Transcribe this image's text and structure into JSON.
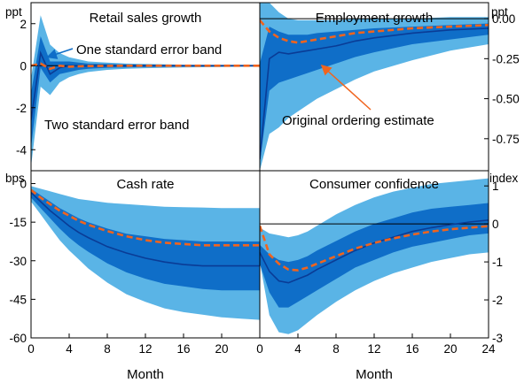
{
  "colors": {
    "two_se_band": "#5ab4e6",
    "one_se_band": "#0f6ec8",
    "median": "#0a3c96",
    "original_ordering": "#f0641e",
    "zero_line": "#000000"
  },
  "chart_data": [
    {
      "type": "area",
      "id": "retail",
      "title": "Retail sales growth",
      "unit": "ppt",
      "axis_side": "left",
      "ylim": [
        -5,
        3
      ],
      "yticks": [
        2,
        0,
        -2,
        -4
      ],
      "ytick_labels": [
        "2",
        "0",
        "-2",
        "-4"
      ],
      "xlim": [
        0,
        24
      ],
      "xticks": [
        0,
        4,
        8,
        12,
        16,
        20
      ],
      "xtick_labels": [
        "0",
        "4",
        "8",
        "12",
        "16",
        "20"
      ],
      "xlabel": "Month",
      "zero_line": 0,
      "x": [
        0,
        1,
        2,
        3,
        4,
        5,
        6,
        8,
        10,
        12,
        16,
        20,
        24
      ],
      "two_se_upper": [
        -0.6,
        2.4,
        1.0,
        0.6,
        0.4,
        0.3,
        0.2,
        0.15,
        0.1,
        0.08,
        0.05,
        0.04,
        0.04
      ],
      "two_se_lower": [
        -4.8,
        -1.0,
        -1.4,
        -0.8,
        -0.55,
        -0.4,
        -0.3,
        -0.2,
        -0.15,
        -0.12,
        -0.08,
        -0.06,
        -0.05
      ],
      "one_se_upper": [
        -1.3,
        1.4,
        0.2,
        0.2,
        0.2,
        0.15,
        0.1,
        0.08,
        0.06,
        0.05,
        0.03,
        0.02,
        0.02
      ],
      "one_se_lower": [
        -3.9,
        -0.1,
        -0.8,
        -0.4,
        -0.3,
        -0.2,
        -0.15,
        -0.1,
        -0.08,
        -0.06,
        -0.04,
        -0.03,
        -0.03
      ],
      "median": [
        -2.6,
        0.6,
        -0.4,
        -0.1,
        0.0,
        -0.02,
        -0.02,
        -0.01,
        -0.01,
        -0.01,
        0.0,
        0.0,
        0.0
      ],
      "original_ordering": [
        0.0,
        0.1,
        -0.15,
        0.0,
        -0.05,
        -0.03,
        -0.02,
        -0.01,
        0.0,
        0.0,
        0.0,
        0.0,
        0.0
      ],
      "annotations": [
        {
          "text": "One standard error band",
          "color": "one_se_band"
        },
        {
          "text": "Two standard error band",
          "color": "two_se_band"
        }
      ]
    },
    {
      "type": "area",
      "id": "employment",
      "title": "Employment growth",
      "unit": "ppt",
      "axis_side": "right",
      "ylim": [
        -0.95,
        0.1
      ],
      "yticks": [
        0.0,
        -0.25,
        -0.5,
        -0.75
      ],
      "ytick_labels": [
        "0.00",
        "-0.25",
        "-0.50",
        "-0.75"
      ],
      "xlim": [
        0,
        24
      ],
      "xticks": [
        0,
        4,
        8,
        12,
        16,
        20,
        24
      ],
      "xtick_labels": [
        "0",
        "4",
        "8",
        "12",
        "16",
        "20",
        "24"
      ],
      "xlabel": "Month",
      "zero_line": 0,
      "x": [
        0,
        1,
        2,
        3,
        4,
        5,
        6,
        8,
        10,
        12,
        16,
        20,
        24
      ],
      "two_se_upper": [
        0.2,
        0.1,
        0.04,
        0.0,
        -0.01,
        -0.01,
        -0.01,
        -0.01,
        0.0,
        0.0,
        0.0,
        0.01,
        0.01
      ],
      "two_se_lower": [
        -0.95,
        -0.72,
        -0.68,
        -0.62,
        -0.58,
        -0.54,
        -0.5,
        -0.44,
        -0.38,
        -0.33,
        -0.26,
        -0.2,
        -0.16
      ],
      "one_se_upper": [
        -0.28,
        -0.05,
        -0.08,
        -0.1,
        -0.1,
        -0.1,
        -0.09,
        -0.08,
        -0.07,
        -0.06,
        -0.05,
        -0.04,
        -0.03
      ],
      "one_se_lower": [
        -0.9,
        -0.45,
        -0.4,
        -0.38,
        -0.36,
        -0.34,
        -0.32,
        -0.28,
        -0.24,
        -0.21,
        -0.16,
        -0.13,
        -0.1
      ],
      "median": [
        -0.88,
        -0.25,
        -0.21,
        -0.22,
        -0.21,
        -0.2,
        -0.19,
        -0.17,
        -0.14,
        -0.12,
        -0.09,
        -0.07,
        -0.06
      ],
      "original_ordering": [
        -0.01,
        -0.08,
        -0.12,
        -0.14,
        -0.15,
        -0.14,
        -0.13,
        -0.11,
        -0.09,
        -0.08,
        -0.06,
        -0.05,
        -0.04
      ],
      "annotations": [
        {
          "text": "Original ordering estimate",
          "color": "original_ordering"
        }
      ]
    },
    {
      "type": "area",
      "id": "cash",
      "title": "Cash rate",
      "unit": "bps",
      "axis_side": "left",
      "ylim": [
        -60,
        5
      ],
      "yticks": [
        0,
        -15,
        -30,
        -45,
        -60
      ],
      "ytick_labels": [
        "0",
        "-15",
        "-30",
        "-45",
        "-60"
      ],
      "xlim": [
        0,
        24
      ],
      "xticks": [
        0,
        4,
        8,
        12,
        16,
        20
      ],
      "xtick_labels": [
        "0",
        "4",
        "8",
        "12",
        "16",
        "20"
      ],
      "xlabel": "Month",
      "zero_line": null,
      "x": [
        0,
        1,
        2,
        3,
        4,
        5,
        6,
        8,
        10,
        12,
        14,
        16,
        18,
        20,
        22,
        24
      ],
      "two_se_upper": [
        -1,
        -2,
        -3,
        -4,
        -5,
        -6,
        -6.5,
        -7.5,
        -8,
        -8.5,
        -9,
        -9.2,
        -9.3,
        -9.5,
        -9.5,
        -9.5
      ],
      "two_se_lower": [
        -7,
        -12,
        -17,
        -22,
        -26,
        -29.5,
        -33,
        -38.5,
        -43,
        -46,
        -48.5,
        -50,
        -51,
        -52,
        -52.5,
        -53
      ],
      "one_se_upper": [
        -2,
        -4.5,
        -7,
        -9.5,
        -11.5,
        -13.5,
        -15,
        -17.5,
        -19.5,
        -20.5,
        -21.5,
        -22,
        -22.5,
        -22.5,
        -22.5,
        -22.5
      ],
      "one_se_lower": [
        -5.5,
        -9.5,
        -13.5,
        -17.5,
        -21,
        -24,
        -26.5,
        -31,
        -34.5,
        -37,
        -39,
        -40,
        -41,
        -41.5,
        -41.5,
        -41.5
      ],
      "median": [
        -3.5,
        -7,
        -10.5,
        -13.5,
        -16.5,
        -19,
        -21,
        -24.5,
        -27,
        -29,
        -30.5,
        -31.5,
        -32,
        -32,
        -32,
        -32
      ],
      "original_ordering": [
        -2.5,
        -5.5,
        -8,
        -10.5,
        -12.5,
        -14.5,
        -16,
        -18.5,
        -20.5,
        -22,
        -23,
        -23.5,
        -24,
        -24,
        -24,
        -24
      ],
      "annotations": []
    },
    {
      "type": "area",
      "id": "confidence",
      "title": "Consumer confidence",
      "unit": "index",
      "axis_side": "right",
      "ylim": [
        -3,
        1.4
      ],
      "yticks": [
        1,
        0,
        -1,
        -2,
        -3
      ],
      "ytick_labels": [
        "1",
        "0",
        "-1",
        "-2",
        "-3"
      ],
      "xlim": [
        0,
        24
      ],
      "xticks": [
        0,
        4,
        8,
        12,
        16,
        20,
        24
      ],
      "xtick_labels": [
        "0",
        "4",
        "8",
        "12",
        "16",
        "20",
        "24"
      ],
      "xlabel": "Month",
      "zero_line": 0,
      "x": [
        0,
        1,
        2,
        3,
        4,
        5,
        6,
        8,
        10,
        12,
        14,
        16,
        18,
        20,
        22,
        24
      ],
      "two_se_upper": [
        -0.1,
        -0.25,
        -0.3,
        -0.35,
        -0.3,
        -0.2,
        -0.05,
        0.25,
        0.5,
        0.7,
        0.85,
        0.95,
        1.05,
        1.1,
        1.15,
        1.2
      ],
      "two_se_lower": [
        -1.0,
        -2.4,
        -2.85,
        -2.9,
        -2.8,
        -2.6,
        -2.4,
        -2.05,
        -1.75,
        -1.5,
        -1.3,
        -1.15,
        -1.0,
        -0.9,
        -0.8,
        -0.75
      ],
      "one_se_upper": [
        -0.55,
        -0.8,
        -0.95,
        -1.0,
        -0.95,
        -0.85,
        -0.7,
        -0.45,
        -0.2,
        0.0,
        0.15,
        0.3,
        0.4,
        0.45,
        0.5,
        0.55
      ],
      "one_se_lower": [
        -1.05,
        -1.8,
        -2.2,
        -2.2,
        -2.05,
        -1.9,
        -1.75,
        -1.45,
        -1.15,
        -0.95,
        -0.75,
        -0.6,
        -0.5,
        -0.4,
        -0.3,
        -0.25
      ],
      "median": [
        -0.75,
        -1.25,
        -1.5,
        -1.55,
        -1.45,
        -1.35,
        -1.2,
        -0.95,
        -0.7,
        -0.5,
        -0.35,
        -0.2,
        -0.1,
        -0.02,
        0.05,
        0.1
      ],
      "original_ordering": [
        -0.05,
        -0.8,
        -1.05,
        -1.2,
        -1.22,
        -1.15,
        -1.05,
        -0.85,
        -0.65,
        -0.5,
        -0.38,
        -0.28,
        -0.2,
        -0.14,
        -0.1,
        -0.06
      ],
      "annotations": []
    }
  ]
}
